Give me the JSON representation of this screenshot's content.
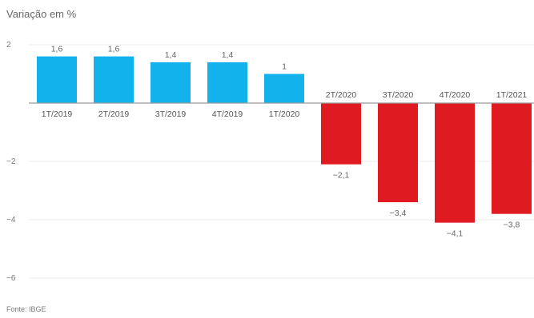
{
  "header": {
    "subtitle": "Variação em %"
  },
  "footer": {
    "source": "Fonte: IBGE"
  },
  "chart_data": {
    "type": "bar",
    "title": "",
    "ylabel": "Variação em %",
    "xlabel": "",
    "categories": [
      "1T/2019",
      "2T/2019",
      "3T/2019",
      "4T/2019",
      "1T/2020",
      "2T/2020",
      "3T/2020",
      "4T/2020",
      "1T/2021"
    ],
    "values": [
      1.6,
      1.6,
      1.4,
      1.4,
      1,
      -2.1,
      -3.4,
      -4.1,
      -3.8
    ],
    "value_labels": [
      "1,6",
      "1,6",
      "1,4",
      "1,4",
      "1",
      "−2,1",
      "−3,4",
      "−4,1",
      "−3,8"
    ],
    "ylim": [
      -6,
      2
    ],
    "yticks": [
      2,
      -2,
      -4,
      -6
    ],
    "ytick_labels": [
      "2",
      "−2",
      "−4",
      "−6"
    ],
    "grid": true,
    "legend": "none",
    "colors": {
      "positive": "#12b2ec",
      "negative": "#df1a21",
      "grid": "#ebebeb",
      "baseline": "#9a9a9a"
    }
  }
}
